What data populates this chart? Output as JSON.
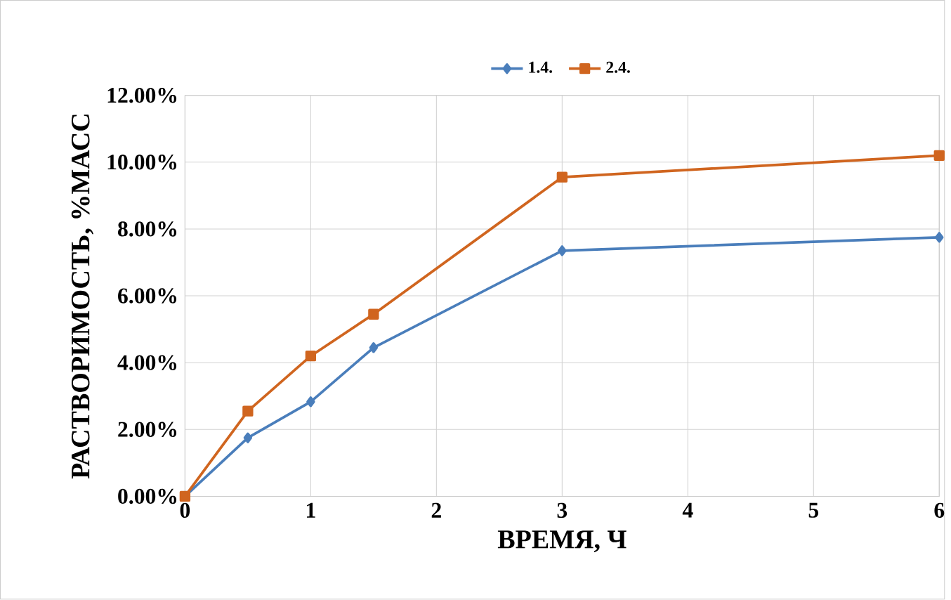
{
  "chart_data": {
    "type": "line",
    "xlabel": "ВРЕМЯ, Ч",
    "ylabel": "РАСТВОРИМОСТЬ, %МАСС",
    "x": [
      0,
      0.5,
      1,
      1.5,
      3,
      6
    ],
    "series": [
      {
        "name": "1.4.",
        "color": "#4a7ebb",
        "marker": "diamond",
        "values": [
          0,
          1.75,
          2.83,
          4.45,
          7.35,
          7.75
        ]
      },
      {
        "name": "2.4.",
        "color": "#d0651f",
        "marker": "square",
        "values": [
          0,
          2.55,
          4.2,
          5.45,
          9.55,
          10.2
        ]
      }
    ],
    "xlim": [
      0,
      6
    ],
    "xticks": [
      0,
      1,
      2,
      3,
      4,
      5,
      6
    ],
    "ylim": [
      0,
      12
    ],
    "yticks": [
      {
        "value": 0,
        "label": "0.00%"
      },
      {
        "value": 2,
        "label": "2.00%"
      },
      {
        "value": 4,
        "label": "4.00%"
      },
      {
        "value": 6,
        "label": "6.00%"
      },
      {
        "value": 8,
        "label": "8.00%"
      },
      {
        "value": 10,
        "label": "10.00%"
      },
      {
        "value": 12,
        "label": "12.00%"
      }
    ],
    "grid": true,
    "legend": "top",
    "line_style": "solid"
  }
}
